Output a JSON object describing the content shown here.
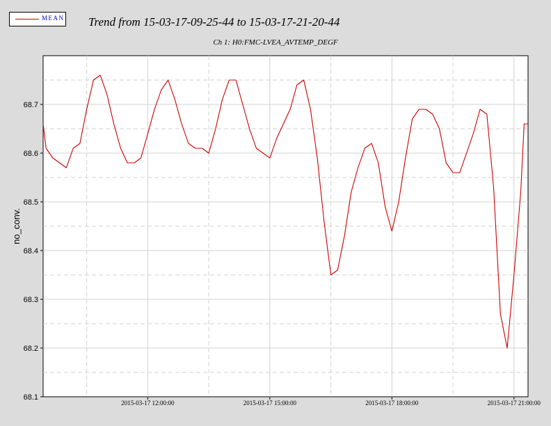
{
  "legend": {
    "label": "MEAN",
    "line_color": "#cc0000"
  },
  "title": "Trend from 15-03-17-09-25-44 to 15-03-17-21-20-44",
  "subtitle": "Ch 1: H0:FMC-LVEA_AVTEMP_DEGF",
  "chart_data": {
    "type": "line",
    "title": "Trend from 15-03-17-09-25-44 to 15-03-17-21-20-44",
    "subtitle": "Ch 1: H0:FMC-LVEA_AVTEMP_DEGF",
    "xlabel": "",
    "ylabel": "no_conv.",
    "xlim": [
      "2015-03-17 09:25:44",
      "2015-03-17 21:20:44"
    ],
    "ylim": [
      68.1,
      68.8
    ],
    "y_ticks": [
      "68.1",
      "68.2",
      "68.3",
      "68.4",
      "68.5",
      "68.6",
      "68.7"
    ],
    "x_tick_labels": [
      "2015-03-17 12:00:00",
      "2015-03-17 15:00:00",
      "2015-03-17 18:00:00",
      "2015-03-17 21:00:00"
    ],
    "grid": true,
    "series": [
      {
        "name": "MEAN",
        "color": "#cc0000",
        "x": [
          "2015-03-17 09:25:44",
          "2015-03-17 09:30:00",
          "2015-03-17 09:40:00",
          "2015-03-17 09:50:00",
          "2015-03-17 10:00:00",
          "2015-03-17 10:10:00",
          "2015-03-17 10:20:00",
          "2015-03-17 10:30:00",
          "2015-03-17 10:40:00",
          "2015-03-17 10:50:00",
          "2015-03-17 11:00:00",
          "2015-03-17 11:10:00",
          "2015-03-17 11:20:00",
          "2015-03-17 11:30:00",
          "2015-03-17 11:40:00",
          "2015-03-17 11:50:00",
          "2015-03-17 12:00:00",
          "2015-03-17 12:10:00",
          "2015-03-17 12:20:00",
          "2015-03-17 12:30:00",
          "2015-03-17 12:40:00",
          "2015-03-17 12:50:00",
          "2015-03-17 13:00:00",
          "2015-03-17 13:10:00",
          "2015-03-17 13:20:00",
          "2015-03-17 13:30:00",
          "2015-03-17 13:40:00",
          "2015-03-17 13:50:00",
          "2015-03-17 14:00:00",
          "2015-03-17 14:10:00",
          "2015-03-17 14:20:00",
          "2015-03-17 14:30:00",
          "2015-03-17 14:40:00",
          "2015-03-17 14:50:00",
          "2015-03-17 15:00:00",
          "2015-03-17 15:10:00",
          "2015-03-17 15:20:00",
          "2015-03-17 15:30:00",
          "2015-03-17 15:40:00",
          "2015-03-17 15:50:00",
          "2015-03-17 16:00:00",
          "2015-03-17 16:10:00",
          "2015-03-17 16:20:00",
          "2015-03-17 16:30:00",
          "2015-03-17 16:40:00",
          "2015-03-17 16:50:00",
          "2015-03-17 17:00:00",
          "2015-03-17 17:10:00",
          "2015-03-17 17:20:00",
          "2015-03-17 17:30:00",
          "2015-03-17 17:40:00",
          "2015-03-17 17:50:00",
          "2015-03-17 18:00:00",
          "2015-03-17 18:10:00",
          "2015-03-17 18:20:00",
          "2015-03-17 18:30:00",
          "2015-03-17 18:40:00",
          "2015-03-17 18:50:00",
          "2015-03-17 19:00:00",
          "2015-03-17 19:10:00",
          "2015-03-17 19:20:00",
          "2015-03-17 19:30:00",
          "2015-03-17 19:40:00",
          "2015-03-17 19:50:00",
          "2015-03-17 20:00:00",
          "2015-03-17 20:10:00",
          "2015-03-17 20:20:00",
          "2015-03-17 20:30:00",
          "2015-03-17 20:40:00",
          "2015-03-17 20:50:00",
          "2015-03-17 21:00:00",
          "2015-03-17 21:10:00",
          "2015-03-17 21:15:00",
          "2015-03-17 21:20:44"
        ],
        "y": [
          68.66,
          68.61,
          68.59,
          68.58,
          68.57,
          68.61,
          68.62,
          68.69,
          68.75,
          68.76,
          68.72,
          68.66,
          68.61,
          68.58,
          68.58,
          68.59,
          68.64,
          68.69,
          68.73,
          68.75,
          68.71,
          68.66,
          68.62,
          68.61,
          68.61,
          68.6,
          68.65,
          68.71,
          68.75,
          68.75,
          68.7,
          68.65,
          68.61,
          68.6,
          68.59,
          68.63,
          68.66,
          68.69,
          68.74,
          68.75,
          68.69,
          68.59,
          68.46,
          68.35,
          68.36,
          68.43,
          68.52,
          68.57,
          68.61,
          68.62,
          68.58,
          68.49,
          68.44,
          68.5,
          68.59,
          68.67,
          68.69,
          68.69,
          68.68,
          68.65,
          68.58,
          68.56,
          68.56,
          68.6,
          68.64,
          68.69,
          68.68,
          68.53,
          68.27,
          68.2,
          68.35,
          68.52,
          68.66,
          68.66
        ]
      }
    ]
  }
}
